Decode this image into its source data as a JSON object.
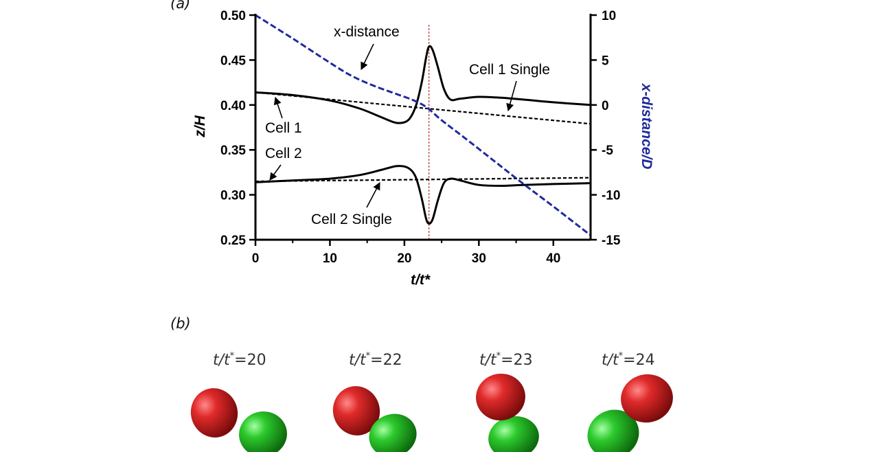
{
  "panel_labels": {
    "a": "(a)",
    "b": "(b)"
  },
  "chart_data": {
    "type": "line",
    "xlabel": "t/t*",
    "ylabel": "z/H",
    "y2label": "x-distance/D",
    "xlim": [
      0,
      45
    ],
    "ylim": [
      0.25,
      0.5
    ],
    "y2lim": [
      -15,
      10
    ],
    "x_ticks": [
      0,
      10,
      20,
      30,
      40
    ],
    "y_ticks": [
      0.25,
      0.3,
      0.35,
      0.4,
      0.45,
      0.5
    ],
    "y_tick_labels": [
      "0.25",
      "0.30",
      "0.35",
      "0.40",
      "0.45",
      "0.50"
    ],
    "y2_ticks": [
      -15,
      -10,
      -5,
      0,
      5,
      10
    ],
    "y2_tick_labels": [
      "-15",
      "-10",
      "-5",
      "0",
      "5",
      "10"
    ],
    "marker_line_x": 23.3,
    "grid": false,
    "series": [
      {
        "name": "Cell 1",
        "axis": "left",
        "style": "solid",
        "color": "#000000",
        "x": [
          0,
          5,
          10,
          14,
          17,
          19,
          20.5,
          21.5,
          22.3,
          22.9,
          23.3,
          23.8,
          24.5,
          25.3,
          26.2,
          27.5,
          30,
          33,
          36,
          40,
          45
        ],
        "y": [
          0.414,
          0.411,
          0.405,
          0.396,
          0.386,
          0.38,
          0.383,
          0.398,
          0.424,
          0.452,
          0.465,
          0.461,
          0.442,
          0.418,
          0.406,
          0.407,
          0.409,
          0.408,
          0.406,
          0.403,
          0.4
        ]
      },
      {
        "name": "Cell 2",
        "axis": "left",
        "style": "solid",
        "color": "#000000",
        "x": [
          0,
          5,
          10,
          14,
          17,
          19,
          20.5,
          21.5,
          22.3,
          22.9,
          23.3,
          23.8,
          24.5,
          25.3,
          26.2,
          27.5,
          30,
          33,
          36,
          40,
          45
        ],
        "y": [
          0.314,
          0.316,
          0.318,
          0.322,
          0.328,
          0.332,
          0.33,
          0.32,
          0.297,
          0.274,
          0.268,
          0.273,
          0.294,
          0.313,
          0.318,
          0.316,
          0.311,
          0.31,
          0.311,
          0.312,
          0.313
        ]
      },
      {
        "name": "Cell 1 Single",
        "axis": "left",
        "style": "dashed",
        "color": "#000000",
        "x": [
          0,
          45
        ],
        "y": [
          0.414,
          0.379
        ]
      },
      {
        "name": "Cell 2 Single",
        "axis": "left",
        "style": "dashed",
        "color": "#000000",
        "x": [
          0,
          45
        ],
        "y": [
          0.315,
          0.319
        ]
      },
      {
        "name": "x-distance",
        "axis": "right",
        "style": "dashed",
        "color": "#1f2a9c",
        "x": [
          0,
          5,
          10,
          13,
          16,
          19,
          21,
          22.5,
          23.5,
          25,
          28,
          32,
          36,
          40,
          45
        ],
        "y": [
          10,
          7.4,
          4.7,
          3.2,
          2.1,
          1.2,
          0.6,
          0,
          -0.6,
          -1.7,
          -3.6,
          -6.2,
          -8.8,
          -11.3,
          -14.5
        ]
      }
    ],
    "annotations": [
      {
        "text": "x-distance"
      },
      {
        "text": "Cell 1 Single"
      },
      {
        "text": "Cell 1"
      },
      {
        "text": "Cell 2"
      },
      {
        "text": "Cell 2 Single"
      }
    ]
  },
  "snapshots": [
    {
      "label": "t/t*=20",
      "t": "t/t",
      "star": "*",
      "value": "=20"
    },
    {
      "label": "t/t*=22",
      "t": "t/t",
      "star": "*",
      "value": "=22"
    },
    {
      "label": "t/t*=23",
      "t": "t/t",
      "star": "*",
      "value": "=23"
    },
    {
      "label": "t/t*=24",
      "t": "t/t",
      "star": "*",
      "value": "=24"
    }
  ],
  "colors": {
    "red_cell": "#c81e1e",
    "green_cell": "#1fa61f",
    "x_distance": "#1f2a9c",
    "marker_line": "#b03030"
  }
}
